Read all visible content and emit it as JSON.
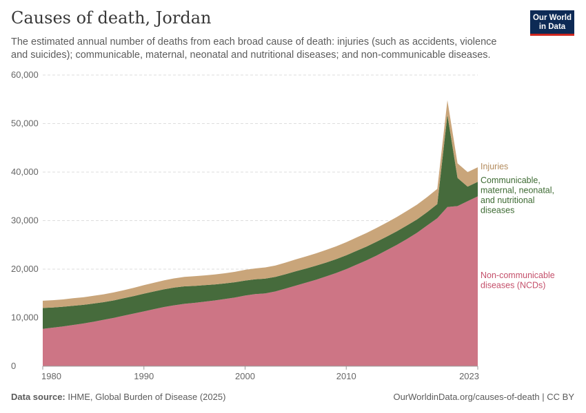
{
  "header": {
    "title": "Causes of death, Jordan",
    "subtitle": "The estimated annual number of deaths from each broad cause of death: injuries (such as accidents, violence and suicides); communicable, maternal, neonatal and nutritional diseases; and non-communicable diseases.",
    "logo_line1": "Our World",
    "logo_line2": "in Data"
  },
  "footer": {
    "source_label": "Data source:",
    "source_text": "IHME, Global Burden of Disease (2025)",
    "url": "OurWorldinData.org/causes-of-death | CC BY"
  },
  "chart_data": {
    "type": "area",
    "stacked": true,
    "x": [
      1980,
      1981,
      1982,
      1983,
      1984,
      1985,
      1986,
      1987,
      1988,
      1989,
      1990,
      1991,
      1992,
      1993,
      1994,
      1995,
      1996,
      1997,
      1998,
      1999,
      2000,
      2001,
      2002,
      2003,
      2004,
      2005,
      2006,
      2007,
      2008,
      2009,
      2010,
      2011,
      2012,
      2013,
      2014,
      2015,
      2016,
      2017,
      2018,
      2019,
      2020,
      2021,
      2022,
      2023
    ],
    "xticks": [
      1980,
      1990,
      2000,
      2010,
      2023
    ],
    "ylim": [
      0,
      60000
    ],
    "yticks": [
      0,
      10000,
      20000,
      30000,
      40000,
      50000,
      60000
    ],
    "grid": "horizontal",
    "series": [
      {
        "name": "Non-communicable diseases (NCDs)",
        "color": "#cd7585",
        "label_color": "#c44f6a",
        "values": [
          7700,
          7950,
          8200,
          8500,
          8800,
          9150,
          9550,
          9950,
          10400,
          10850,
          11300,
          11750,
          12200,
          12550,
          12850,
          13050,
          13300,
          13550,
          13850,
          14150,
          14550,
          14850,
          15000,
          15400,
          16000,
          16600,
          17200,
          17800,
          18500,
          19200,
          20000,
          20900,
          21800,
          22800,
          23900,
          25000,
          26200,
          27500,
          29000,
          30500,
          32800,
          33000,
          34000,
          35000
        ]
      },
      {
        "name": "Communicable, maternal, neonatal, and nutritional diseases",
        "color": "#466b3c",
        "label_color": "#3e6b33",
        "values": [
          4300,
          4150,
          4050,
          3950,
          3850,
          3750,
          3650,
          3600,
          3600,
          3600,
          3650,
          3650,
          3650,
          3650,
          3600,
          3500,
          3400,
          3300,
          3200,
          3150,
          3100,
          3050,
          3050,
          3000,
          2950,
          2950,
          2900,
          2900,
          2850,
          2850,
          2850,
          2850,
          2850,
          2850,
          2800,
          2800,
          2800,
          2750,
          2750,
          2900,
          19000,
          5800,
          3000,
          3000
        ]
      },
      {
        "name": "Injuries",
        "color": "#c9a57a",
        "label_color": "#b38b5d",
        "values": [
          1500,
          1500,
          1500,
          1550,
          1550,
          1600,
          1600,
          1650,
          1650,
          1700,
          1750,
          1800,
          1850,
          1900,
          1950,
          2000,
          2000,
          2050,
          2100,
          2150,
          2200,
          2250,
          2300,
          2350,
          2400,
          2450,
          2500,
          2550,
          2600,
          2650,
          2700,
          2750,
          2800,
          2850,
          2900,
          2950,
          3000,
          3050,
          3100,
          3150,
          3000,
          3000,
          3000,
          3000
        ]
      }
    ]
  }
}
